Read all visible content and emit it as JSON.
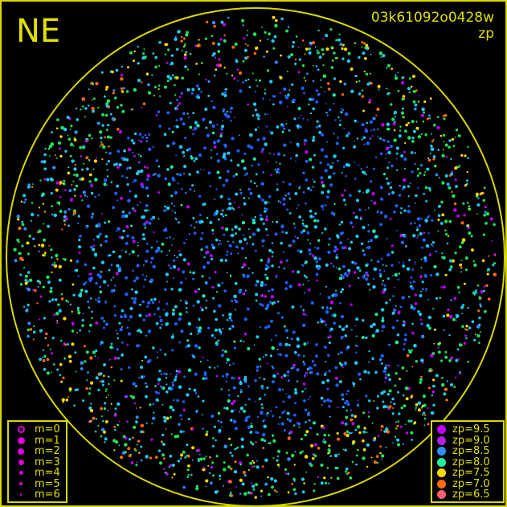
{
  "header": {
    "direction": "NE",
    "image_id": "03k61092o0428w",
    "mode": "zp"
  },
  "magnitude_legend": [
    {
      "label": "m=0",
      "size": 0,
      "hollow": true
    },
    {
      "label": "m=1",
      "size": 1
    },
    {
      "label": "m=2",
      "size": 2
    },
    {
      "label": "m=3",
      "size": 3
    },
    {
      "label": "m=4",
      "size": 4
    },
    {
      "label": "m=5",
      "size": 5
    },
    {
      "label": "m=6",
      "size": 6
    }
  ],
  "zp_legend": [
    {
      "label": "zp=9.5",
      "color": "#c000ff"
    },
    {
      "label": "zp=9.0",
      "color": "#b020e8"
    },
    {
      "label": "zp=8.5",
      "color": "#3090ff"
    },
    {
      "label": "zp=8.0",
      "color": "#20f0a0"
    },
    {
      "label": "zp=7.5",
      "color": "#ffd800"
    },
    {
      "label": "zp=7.0",
      "color": "#ff6a10"
    },
    {
      "label": "zp=6.5",
      "color": "#ff6070"
    }
  ],
  "colors": {
    "horizon": "#d8d800",
    "text": "#e0e000",
    "background": "#000000",
    "cyan": "#20d0f0",
    "blue": "#2060ff"
  }
}
